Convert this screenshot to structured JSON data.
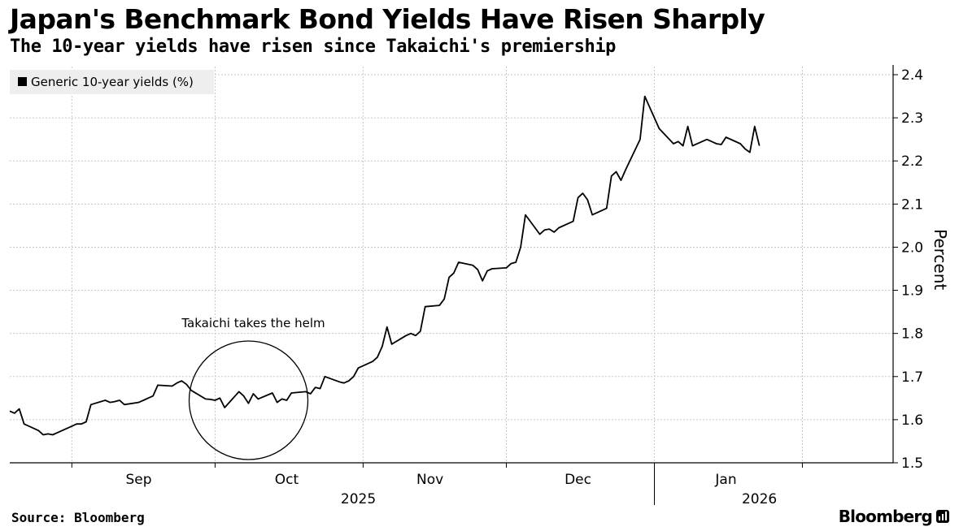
{
  "title": "Japan's Benchmark Bond Yields Have Risen Sharply",
  "subtitle": "The 10-year yields have risen since Takaichi's premiership",
  "source": "Source: Bloomberg",
  "brand": "Bloomberg",
  "colors": {
    "line": "#000000",
    "grid": "#c8c8c8",
    "legend_bg": "#eeeeee",
    "annotation": "#000000"
  },
  "icons": [
    "bloomberg-logo-icon"
  ],
  "chart_data": {
    "type": "line",
    "title": "Japan's Benchmark Bond Yields Have Risen Sharply",
    "subtitle": "The 10-year yields have risen since Takaichi's premiership",
    "ylabel": "Percent",
    "ylim": [
      1.5,
      2.4
    ],
    "y_axis_side": "right",
    "y_ticks": [
      1.5,
      1.6,
      1.7,
      1.8,
      1.9,
      2.0,
      2.1,
      2.2,
      2.3,
      2.4
    ],
    "y_tick_labels": [
      "1.5",
      "1.6",
      "1.7",
      "1.8",
      "1.9",
      "2.0",
      "2.1",
      "2.2",
      "2.3",
      "2.4"
    ],
    "grid": true,
    "legend_position": "top-left",
    "x_range": [
      "2025-08-19",
      "2026-02-20"
    ],
    "x_month_labels": [
      {
        "label": "Sep",
        "date": "2025-09-15"
      },
      {
        "label": "Oct",
        "date": "2025-10-16"
      },
      {
        "label": "Nov",
        "date": "2025-11-15"
      },
      {
        "label": "Dec",
        "date": "2025-12-16"
      },
      {
        "label": "Jan",
        "date": "2026-01-16"
      }
    ],
    "x_month_boundaries": [
      "2025-09-01",
      "2025-10-01",
      "2025-11-01",
      "2025-12-01",
      "2026-01-01",
      "2026-02-01"
    ],
    "x_year_labels": [
      {
        "label": "2025",
        "date": "2025-10-31"
      },
      {
        "label": "2026",
        "date": "2026-01-23"
      }
    ],
    "x_year_boundaries": [
      "2026-01-01"
    ],
    "series": [
      {
        "name": "Generic 10-year yields (%)",
        "points": [
          [
            "2025-08-19",
            1.62
          ],
          [
            "2025-08-20",
            1.615
          ],
          [
            "2025-08-21",
            1.625
          ],
          [
            "2025-08-22",
            1.59
          ],
          [
            "2025-08-25",
            1.575
          ],
          [
            "2025-08-26",
            1.565
          ],
          [
            "2025-08-27",
            1.567
          ],
          [
            "2025-08-28",
            1.565
          ],
          [
            "2025-08-29",
            1.57
          ],
          [
            "2025-09-01",
            1.585
          ],
          [
            "2025-09-02",
            1.59
          ],
          [
            "2025-09-03",
            1.59
          ],
          [
            "2025-09-04",
            1.595
          ],
          [
            "2025-09-05",
            1.635
          ],
          [
            "2025-09-08",
            1.645
          ],
          [
            "2025-09-09",
            1.64
          ],
          [
            "2025-09-10",
            1.642
          ],
          [
            "2025-09-11",
            1.645
          ],
          [
            "2025-09-12",
            1.635
          ],
          [
            "2025-09-15",
            1.64
          ],
          [
            "2025-09-16",
            1.645
          ],
          [
            "2025-09-17",
            1.65
          ],
          [
            "2025-09-18",
            1.655
          ],
          [
            "2025-09-19",
            1.68
          ],
          [
            "2025-09-22",
            1.678
          ],
          [
            "2025-09-23",
            1.685
          ],
          [
            "2025-09-24",
            1.69
          ],
          [
            "2025-09-25",
            1.682
          ],
          [
            "2025-09-26",
            1.668
          ],
          [
            "2025-09-29",
            1.648
          ],
          [
            "2025-09-30",
            1.647
          ],
          [
            "2025-10-01",
            1.645
          ],
          [
            "2025-10-02",
            1.65
          ],
          [
            "2025-10-03",
            1.628
          ],
          [
            "2025-10-06",
            1.665
          ],
          [
            "2025-10-07",
            1.655
          ],
          [
            "2025-10-08",
            1.638
          ],
          [
            "2025-10-09",
            1.66
          ],
          [
            "2025-10-10",
            1.648
          ],
          [
            "2025-10-13",
            1.662
          ],
          [
            "2025-10-14",
            1.64
          ],
          [
            "2025-10-15",
            1.648
          ],
          [
            "2025-10-16",
            1.645
          ],
          [
            "2025-10-17",
            1.662
          ],
          [
            "2025-10-20",
            1.665
          ],
          [
            "2025-10-21",
            1.66
          ],
          [
            "2025-10-22",
            1.675
          ],
          [
            "2025-10-23",
            1.672
          ],
          [
            "2025-10-24",
            1.7
          ],
          [
            "2025-10-27",
            1.688
          ],
          [
            "2025-10-28",
            1.685
          ],
          [
            "2025-10-29",
            1.69
          ],
          [
            "2025-10-30",
            1.7
          ],
          [
            "2025-10-31",
            1.72
          ],
          [
            "2025-11-03",
            1.735
          ],
          [
            "2025-11-04",
            1.745
          ],
          [
            "2025-11-05",
            1.77
          ],
          [
            "2025-11-06",
            1.815
          ],
          [
            "2025-11-07",
            1.775
          ],
          [
            "2025-11-10",
            1.795
          ],
          [
            "2025-11-11",
            1.8
          ],
          [
            "2025-11-12",
            1.795
          ],
          [
            "2025-11-13",
            1.805
          ],
          [
            "2025-11-14",
            1.862
          ],
          [
            "2025-11-17",
            1.865
          ],
          [
            "2025-11-18",
            1.88
          ],
          [
            "2025-11-19",
            1.93
          ],
          [
            "2025-11-20",
            1.94
          ],
          [
            "2025-11-21",
            1.965
          ],
          [
            "2025-11-24",
            1.958
          ],
          [
            "2025-11-25",
            1.948
          ],
          [
            "2025-11-26",
            1.922
          ],
          [
            "2025-11-27",
            1.945
          ],
          [
            "2025-11-28",
            1.95
          ],
          [
            "2025-12-01",
            1.952
          ],
          [
            "2025-12-02",
            1.962
          ],
          [
            "2025-12-03",
            1.965
          ],
          [
            "2025-12-04",
            2.0
          ],
          [
            "2025-12-05",
            2.075
          ],
          [
            "2025-12-08",
            2.03
          ],
          [
            "2025-12-09",
            2.04
          ],
          [
            "2025-12-10",
            2.042
          ],
          [
            "2025-12-11",
            2.035
          ],
          [
            "2025-12-12",
            2.045
          ],
          [
            "2025-12-15",
            2.06
          ],
          [
            "2025-12-16",
            2.115
          ],
          [
            "2025-12-17",
            2.125
          ],
          [
            "2025-12-18",
            2.11
          ],
          [
            "2025-12-19",
            2.075
          ],
          [
            "2025-12-22",
            2.09
          ],
          [
            "2025-12-23",
            2.165
          ],
          [
            "2025-12-24",
            2.175
          ],
          [
            "2025-12-25",
            2.155
          ],
          [
            "2025-12-26",
            2.18
          ],
          [
            "2025-12-29",
            2.25
          ],
          [
            "2025-12-30",
            2.35
          ],
          [
            "2026-01-02",
            2.275
          ],
          [
            "2026-01-05",
            2.24
          ],
          [
            "2026-01-06",
            2.245
          ],
          [
            "2026-01-07",
            2.235
          ],
          [
            "2026-01-08",
            2.28
          ],
          [
            "2026-01-09",
            2.235
          ],
          [
            "2026-01-12",
            2.25
          ],
          [
            "2026-01-13",
            2.245
          ],
          [
            "2026-01-14",
            2.24
          ],
          [
            "2026-01-15",
            2.238
          ],
          [
            "2026-01-16",
            2.255
          ],
          [
            "2026-01-19",
            2.24
          ],
          [
            "2026-01-20",
            2.228
          ],
          [
            "2026-01-21",
            2.22
          ],
          [
            "2026-01-22",
            2.28
          ],
          [
            "2026-01-23",
            2.235
          ]
        ]
      }
    ],
    "annotations": [
      {
        "text": "Takaichi takes the helm",
        "shape": "circle",
        "date": "2025-10-08",
        "value": 1.645
      }
    ]
  }
}
